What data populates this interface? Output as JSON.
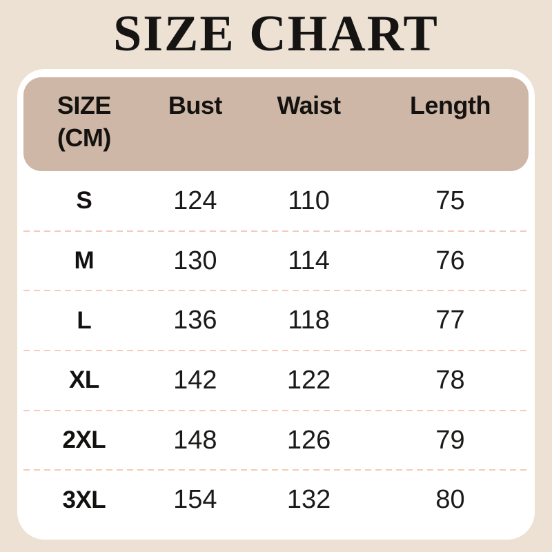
{
  "title": "SIZE CHART",
  "colors": {
    "page_bg": "#EDE1D4",
    "card_bg": "#FFFFFF",
    "header_bg": "#CEB7A6",
    "divider": "#F4CBB9",
    "text": "#161413"
  },
  "table": {
    "header": {
      "size": "SIZE",
      "size_unit": "(CM)",
      "bust": "Bust",
      "waist": "Waist",
      "length": "Length"
    },
    "rows": [
      {
        "size": "S",
        "bust": "124",
        "waist": "110",
        "length": "75"
      },
      {
        "size": "M",
        "bust": "130",
        "waist": "114",
        "length": "76"
      },
      {
        "size": "L",
        "bust": "136",
        "waist": "118",
        "length": "77"
      },
      {
        "size": "XL",
        "bust": "142",
        "waist": "122",
        "length": "78"
      },
      {
        "size": "2XL",
        "bust": "148",
        "waist": "126",
        "length": "79"
      },
      {
        "size": "3XL",
        "bust": "154",
        "waist": "132",
        "length": "80"
      }
    ]
  },
  "chart_data": {
    "type": "table",
    "title": "SIZE CHART",
    "unit": "CM",
    "columns": [
      "SIZE (CM)",
      "Bust",
      "Waist",
      "Length"
    ],
    "rows": [
      [
        "S",
        124,
        110,
        75
      ],
      [
        "M",
        130,
        114,
        76
      ],
      [
        "L",
        136,
        118,
        77
      ],
      [
        "XL",
        142,
        122,
        78
      ],
      [
        "2XL",
        148,
        126,
        79
      ],
      [
        "3XL",
        154,
        132,
        80
      ]
    ]
  }
}
